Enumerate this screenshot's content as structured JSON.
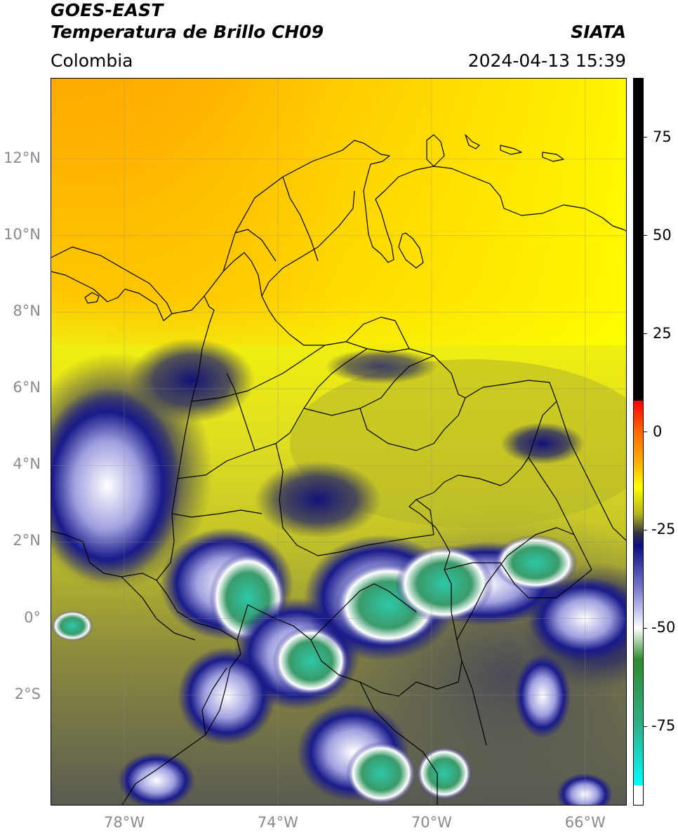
{
  "header": {
    "satellite": "GOES-EAST",
    "product": "Temperatura de Brillo CH09",
    "brand": "SIATA",
    "region": "Colombia",
    "datetime": "2024-04-13 15:39"
  },
  "map": {
    "lon_range": [
      -79.9,
      -64.9
    ],
    "lat_range": [
      -4.9,
      14.1
    ],
    "lat_ticks": [
      {
        "value": 12,
        "label": "12°N"
      },
      {
        "value": 10,
        "label": "10°N"
      },
      {
        "value": 8,
        "label": "8°N"
      },
      {
        "value": 6,
        "label": "6°N"
      },
      {
        "value": 4,
        "label": "4°N"
      },
      {
        "value": 2,
        "label": "2°N"
      },
      {
        "value": 0,
        "label": "0°"
      },
      {
        "value": -2,
        "label": "2°S"
      }
    ],
    "lon_ticks": [
      {
        "value": -78,
        "label": "78°W"
      },
      {
        "value": -74,
        "label": "74°W"
      },
      {
        "value": -70,
        "label": "70°W"
      },
      {
        "value": -66,
        "label": "66°W"
      }
    ],
    "grid": true
  },
  "colorbar": {
    "range": [
      -95,
      90
    ],
    "ticks": [
      {
        "value": 75,
        "label": "75"
      },
      {
        "value": 50,
        "label": "50"
      },
      {
        "value": 25,
        "label": "25"
      },
      {
        "value": 0,
        "label": "0"
      },
      {
        "value": -25,
        "label": "-25"
      },
      {
        "value": -50,
        "label": "-50"
      },
      {
        "value": -75,
        "label": "-75"
      }
    ],
    "stops": [
      {
        "value": 90,
        "color": "#000000"
      },
      {
        "value": 8,
        "color": "#000000"
      },
      {
        "value": 7.9,
        "color": "#ff0000"
      },
      {
        "value": 0,
        "color": "#ff6a00"
      },
      {
        "value": -8,
        "color": "#ffb000"
      },
      {
        "value": -14,
        "color": "#ffff00"
      },
      {
        "value": -21,
        "color": "#b3b320"
      },
      {
        "value": -26,
        "color": "#2e2e45"
      },
      {
        "value": -29,
        "color": "#0d0d85"
      },
      {
        "value": -40,
        "color": "#7a7ad0"
      },
      {
        "value": -50,
        "color": "#ffffff"
      },
      {
        "value": -58,
        "color": "#2e8a2e"
      },
      {
        "value": -75,
        "color": "#2eb08a"
      },
      {
        "value": -90,
        "color": "#00ffff"
      },
      {
        "value": -90.1,
        "color": "#ffffff"
      },
      {
        "value": -95,
        "color": "#ffffff"
      }
    ]
  }
}
